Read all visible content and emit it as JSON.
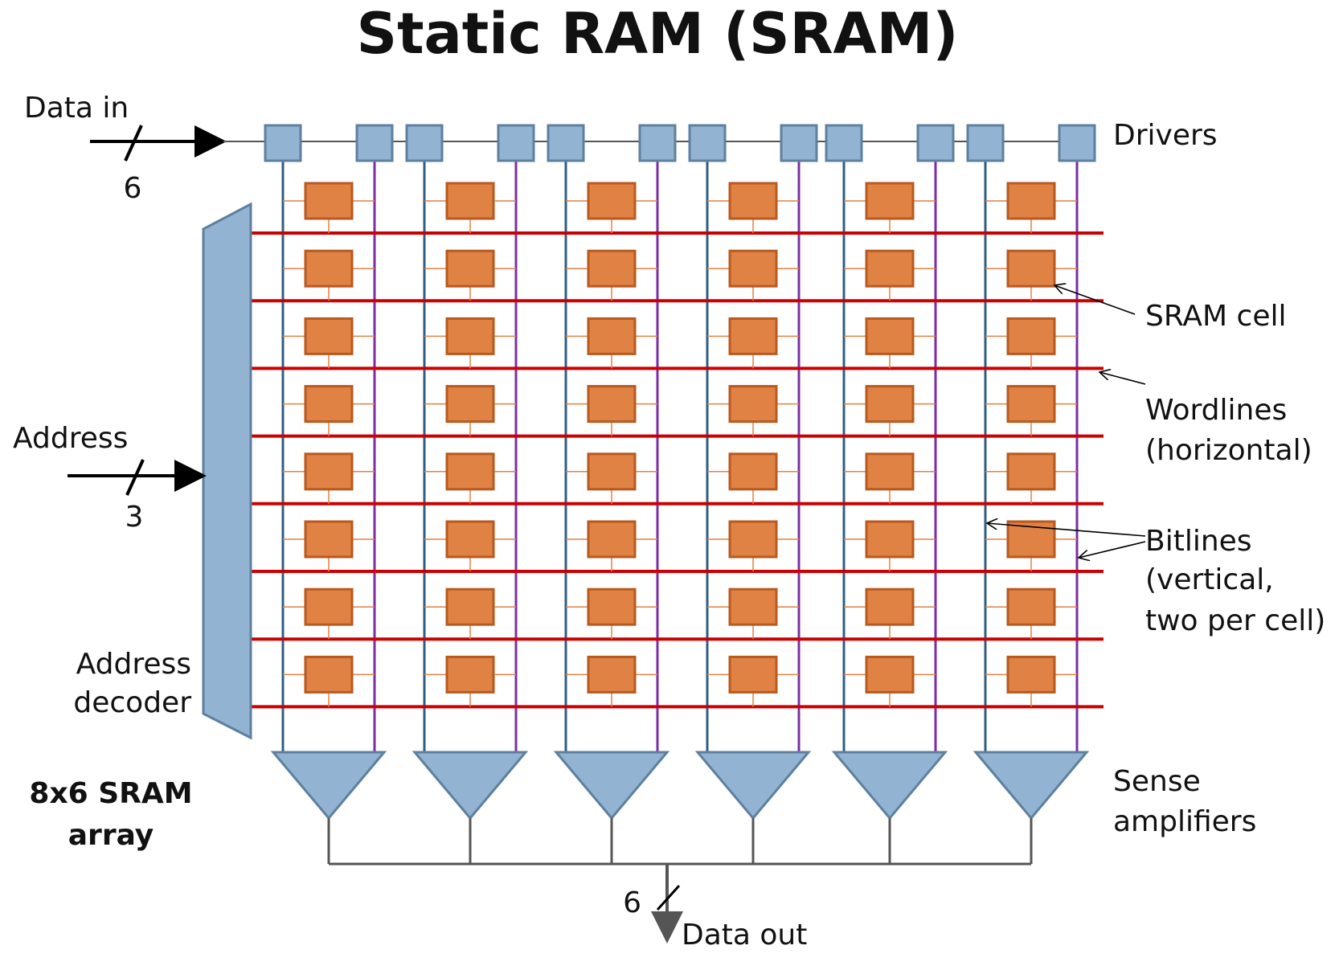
{
  "title": "Static RAM (SRAM)",
  "inputs": {
    "data_in": "Data in",
    "data_in_width": "6",
    "address": "Address",
    "address_width": "3"
  },
  "labels": {
    "drivers": "Drivers",
    "sram_cell": "SRAM cell",
    "wordlines": "Wordlines",
    "wordlines_note": "(horizontal)",
    "bitlines": "Bitlines",
    "bitlines_note_1": "(vertical,",
    "bitlines_note_2": "two per cell)",
    "address_decoder_1": "Address",
    "address_decoder_2": "decoder",
    "array_name_1": "8x6 SRAM",
    "array_name_2": "array",
    "sense_amplifiers_1": "Sense",
    "sense_amplifiers_2": "amplifiers",
    "data_out": "Data out",
    "data_out_width": "6"
  },
  "array": {
    "rows": 8,
    "columns": 6
  },
  "colors": {
    "driver_fill": "#93b3d2",
    "driver_stroke": "#5f7f9e",
    "cell_fill": "#e08244",
    "cell_stroke": "#b85a20",
    "wordline": "#cc0000",
    "bitline": "#2f5f7f",
    "bitline_bar": "#7a2fa6",
    "sram_cell_label": "#e58a4c",
    "wordlines_label": "#cc0000",
    "bitlines_label": "#1f3c88",
    "wire": "#555555"
  }
}
